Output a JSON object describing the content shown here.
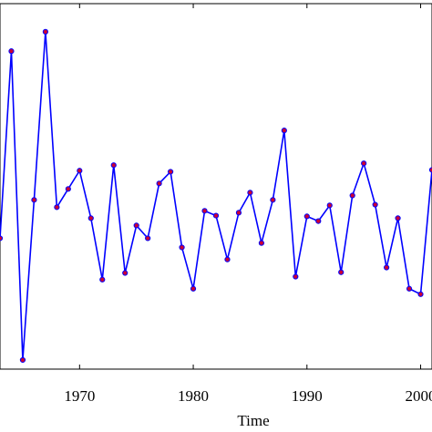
{
  "chart_data": {
    "type": "line",
    "x_label": "Time",
    "x": [
      1963,
      1964,
      1965,
      1966,
      1967,
      1968,
      1969,
      1970,
      1971,
      1972,
      1973,
      1974,
      1975,
      1976,
      1977,
      1978,
      1979,
      1980,
      1981,
      1982,
      1983,
      1984,
      1985,
      1986,
      1987,
      1988,
      1989,
      1990,
      1991,
      1992,
      1993,
      1994,
      1995,
      1996,
      1997,
      1998,
      1999,
      2000,
      2001
    ],
    "series": [
      {
        "color": "#0000ff",
        "marker_color": "#cc0033",
        "values": [
          35.8,
          87,
          2.5,
          46.3,
          92.3,
          44.3,
          49.3,
          54.3,
          41.3,
          24.5,
          55.8,
          26.3,
          39.3,
          35.8,
          50.8,
          54,
          33.3,
          22,
          43.3,
          42,
          30,
          42.8,
          48.3,
          34.5,
          46.3,
          65.3,
          25.3,
          41.8,
          40.5,
          44.8,
          26.5,
          47.5,
          56.3,
          45,
          27.8,
          41.3,
          22,
          20.5,
          54.5
        ]
      }
    ],
    "xlim": [
      1963,
      2001
    ],
    "ylim": [
      0,
      100
    ],
    "xticks": [
      1970,
      1980,
      1990,
      2000
    ]
  }
}
